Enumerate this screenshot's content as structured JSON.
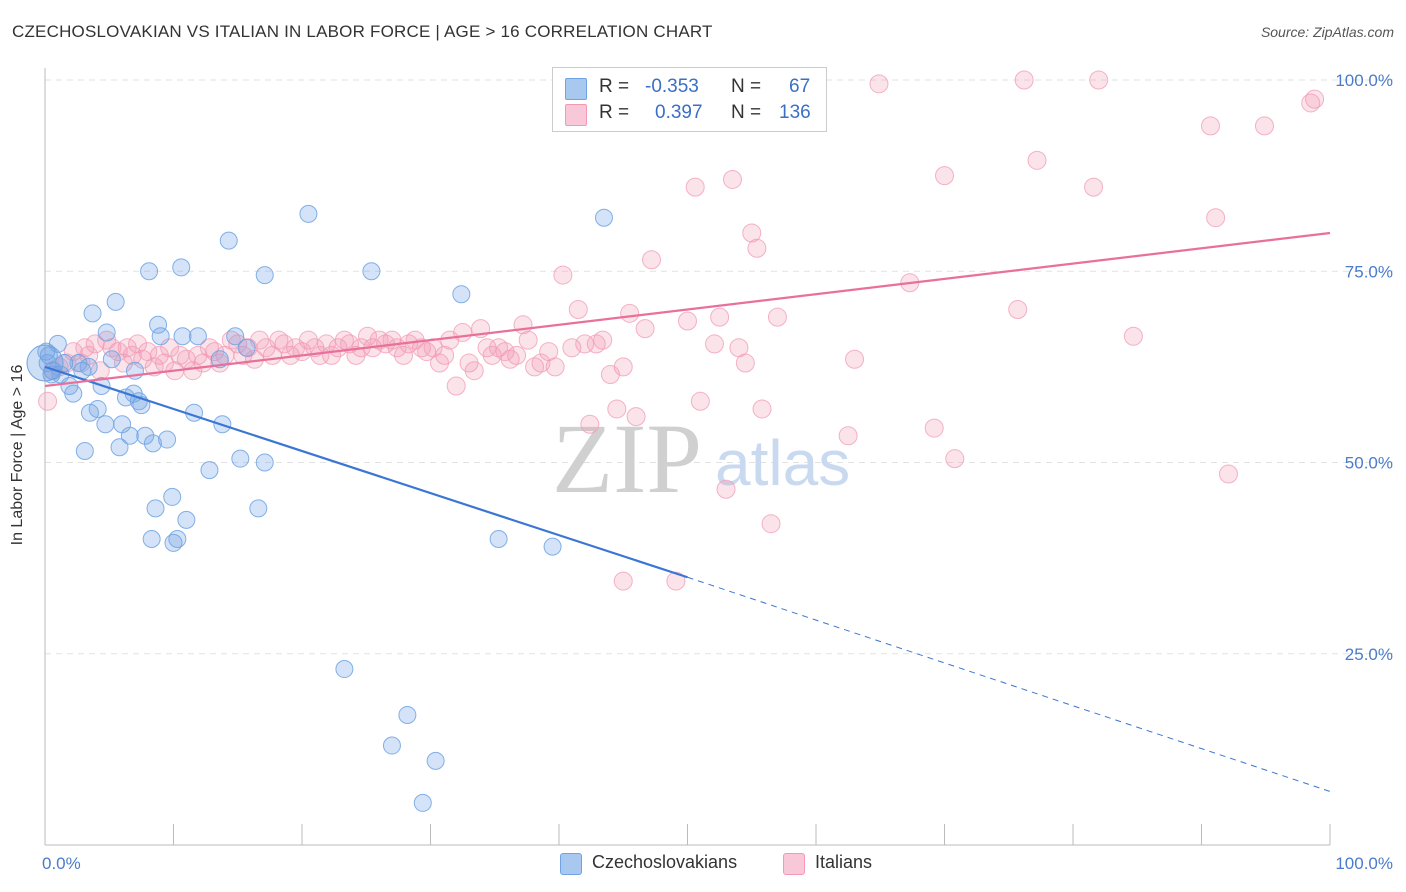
{
  "title": "CZECHOSLOVAKIAN VS ITALIAN IN LABOR FORCE | AGE > 16 CORRELATION CHART",
  "source": "Source: ZipAtlas.com",
  "watermark": {
    "zip": "ZIP",
    "atlas": "atlas"
  },
  "legend": {
    "r_label": "R =",
    "n_label": "N =",
    "rows": [
      {
        "r": "-0.353",
        "n": "67",
        "color": "#a8c8f0"
      },
      {
        "r": "0.397",
        "n": "136",
        "color": "#f8b8cc"
      }
    ]
  },
  "bottom_legend": [
    "Czechoslovakians",
    "Italians"
  ],
  "chart_data": {
    "type": "scatter",
    "ylabel": "In Labor Force | Age > 16",
    "xlim": [
      0,
      100
    ],
    "ylim": [
      0,
      105
    ],
    "x_tick_labels": [
      "0.0%",
      "100.0%"
    ],
    "y_ticks": [
      25,
      50,
      75,
      100
    ],
    "y_tick_labels": [
      "25.0%",
      "50.0%",
      "75.0%",
      "100.0%"
    ],
    "grid": true,
    "colors": {
      "czech": "#6fa3e3",
      "italian": "#f29ab5",
      "czech_line": "#3b76d4",
      "italian_line": "#e8709a"
    },
    "series": [
      {
        "name": "Czechoslovakians",
        "trend": {
          "x0": 0,
          "y0": 62.5,
          "x1": 50,
          "y1": 35,
          "dash_to_x": 100,
          "dash_to_y": 7
        },
        "points": [
          [
            0.1,
            64.5
          ],
          [
            0.2,
            63
          ],
          [
            0.6,
            62
          ],
          [
            1.2,
            61.5
          ],
          [
            1.5,
            63
          ],
          [
            1.9,
            60
          ],
          [
            2.2,
            59
          ],
          [
            2.9,
            62
          ],
          [
            3.1,
            51.5
          ],
          [
            3.4,
            62.5
          ],
          [
            3.5,
            56.5
          ],
          [
            3.7,
            69.5
          ],
          [
            4.1,
            57
          ],
          [
            4.4,
            60
          ],
          [
            4.7,
            55
          ],
          [
            4.8,
            67
          ],
          [
            5.2,
            63.5
          ],
          [
            5.5,
            71
          ],
          [
            5.8,
            52
          ],
          [
            6.0,
            55
          ],
          [
            6.3,
            58.5
          ],
          [
            6.6,
            53.5
          ],
          [
            6.9,
            59
          ],
          [
            7.0,
            62
          ],
          [
            7.3,
            58
          ],
          [
            7.5,
            57.5
          ],
          [
            7.8,
            53.5
          ],
          [
            8.1,
            75
          ],
          [
            8.3,
            40
          ],
          [
            8.4,
            52.5
          ],
          [
            8.6,
            44
          ],
          [
            8.8,
            68
          ],
          [
            9.0,
            66.5
          ],
          [
            9.5,
            53
          ],
          [
            9.9,
            45.5
          ],
          [
            10.0,
            39.5
          ],
          [
            10.3,
            40
          ],
          [
            10.6,
            75.5
          ],
          [
            10.7,
            66.5
          ],
          [
            11.0,
            42.5
          ],
          [
            11.6,
            56.5
          ],
          [
            11.9,
            66.5
          ],
          [
            12.8,
            49
          ],
          [
            13.6,
            63.5
          ],
          [
            13.8,
            55
          ],
          [
            14.3,
            79
          ],
          [
            14.8,
            66.5
          ],
          [
            15.2,
            50.5
          ],
          [
            15.7,
            65
          ],
          [
            16.6,
            44
          ],
          [
            17.1,
            74.5
          ],
          [
            17.1,
            50
          ],
          [
            20.5,
            82.5
          ],
          [
            23.3,
            23
          ],
          [
            25.4,
            75
          ],
          [
            27.0,
            13
          ],
          [
            28.2,
            17
          ],
          [
            29.4,
            5.5
          ],
          [
            30.4,
            11
          ],
          [
            32.4,
            72
          ],
          [
            35.3,
            40
          ],
          [
            39.5,
            39
          ],
          [
            43.5,
            82
          ],
          [
            0.3,
            64
          ],
          [
            1.0,
            65.5
          ],
          [
            2.6,
            63
          ],
          [
            0.5,
            61.5
          ]
        ]
      },
      {
        "name": "Italians",
        "trend": {
          "x0": 0,
          "y0": 60,
          "x1": 100,
          "y1": 80
        },
        "points": [
          [
            0.2,
            58
          ],
          [
            0.6,
            62
          ],
          [
            1.1,
            62.5
          ],
          [
            1.7,
            63
          ],
          [
            2.2,
            64.5
          ],
          [
            2.8,
            63
          ],
          [
            3.1,
            65
          ],
          [
            3.4,
            64
          ],
          [
            3.9,
            65.5
          ],
          [
            4.3,
            62
          ],
          [
            4.8,
            66
          ],
          [
            5.2,
            65
          ],
          [
            5.7,
            64.5
          ],
          [
            6.1,
            63
          ],
          [
            6.4,
            65
          ],
          [
            6.8,
            64
          ],
          [
            7.2,
            65.5
          ],
          [
            7.6,
            63.5
          ],
          [
            8.0,
            64.5
          ],
          [
            8.5,
            62.5
          ],
          [
            8.9,
            64
          ],
          [
            9.3,
            63
          ],
          [
            9.7,
            65
          ],
          [
            10.1,
            62
          ],
          [
            10.5,
            64
          ],
          [
            11.0,
            63.5
          ],
          [
            11.5,
            62
          ],
          [
            11.9,
            64
          ],
          [
            12.3,
            63
          ],
          [
            12.8,
            65
          ],
          [
            13.2,
            64.5
          ],
          [
            13.6,
            63
          ],
          [
            14.0,
            64
          ],
          [
            14.5,
            66
          ],
          [
            15.0,
            65.5
          ],
          [
            15.4,
            64
          ],
          [
            15.8,
            65
          ],
          [
            16.3,
            63.5
          ],
          [
            16.7,
            66
          ],
          [
            17.2,
            65
          ],
          [
            17.7,
            64
          ],
          [
            18.2,
            66
          ],
          [
            18.6,
            65.5
          ],
          [
            19.1,
            64
          ],
          [
            19.5,
            65
          ],
          [
            20.0,
            64.5
          ],
          [
            20.5,
            66
          ],
          [
            21.0,
            65
          ],
          [
            21.4,
            64
          ],
          [
            21.9,
            65.5
          ],
          [
            22.3,
            64
          ],
          [
            22.8,
            65
          ],
          [
            23.3,
            66
          ],
          [
            23.7,
            65.5
          ],
          [
            24.2,
            64
          ],
          [
            24.6,
            65
          ],
          [
            25.1,
            66.5
          ],
          [
            25.5,
            65
          ],
          [
            26.0,
            66
          ],
          [
            26.5,
            65.5
          ],
          [
            27.0,
            66
          ],
          [
            27.4,
            65
          ],
          [
            27.9,
            64
          ],
          [
            28.3,
            65.5
          ],
          [
            28.8,
            66
          ],
          [
            29.3,
            65
          ],
          [
            29.7,
            64.5
          ],
          [
            30.2,
            65
          ],
          [
            30.7,
            63
          ],
          [
            31.1,
            64
          ],
          [
            31.5,
            66
          ],
          [
            32.0,
            60
          ],
          [
            32.5,
            67
          ],
          [
            33.0,
            63
          ],
          [
            33.4,
            62
          ],
          [
            33.9,
            67.5
          ],
          [
            34.4,
            65
          ],
          [
            34.8,
            64
          ],
          [
            35.3,
            65
          ],
          [
            35.8,
            64.5
          ],
          [
            36.2,
            63.5
          ],
          [
            36.7,
            64
          ],
          [
            37.2,
            68
          ],
          [
            37.6,
            66
          ],
          [
            38.1,
            62.5
          ],
          [
            38.6,
            63
          ],
          [
            39.2,
            64.5
          ],
          [
            39.7,
            62.5
          ],
          [
            40.3,
            74.5
          ],
          [
            41.0,
            65
          ],
          [
            41.5,
            70
          ],
          [
            42.0,
            65.5
          ],
          [
            42.4,
            55
          ],
          [
            42.9,
            65.5
          ],
          [
            43.4,
            66
          ],
          [
            44.0,
            61.5
          ],
          [
            44.5,
            57
          ],
          [
            45.0,
            62.5
          ],
          [
            45.5,
            69.5
          ],
          [
            46.0,
            56
          ],
          [
            46.7,
            67.5
          ],
          [
            47.2,
            76.5
          ],
          [
            48.1,
            100
          ],
          [
            50.0,
            68.5
          ],
          [
            50.6,
            86
          ],
          [
            51.0,
            58
          ],
          [
            52.1,
            65.5
          ],
          [
            52.5,
            69
          ],
          [
            53.0,
            46.5
          ],
          [
            53.5,
            87
          ],
          [
            54.0,
            65
          ],
          [
            54.5,
            63
          ],
          [
            55.0,
            80
          ],
          [
            55.4,
            78
          ],
          [
            55.8,
            57
          ],
          [
            56.5,
            42
          ],
          [
            57.0,
            69
          ],
          [
            59.2,
            100
          ],
          [
            62.5,
            53.5
          ],
          [
            63.0,
            63.5
          ],
          [
            64.9,
            99.5
          ],
          [
            67.3,
            73.5
          ],
          [
            69.2,
            54.5
          ],
          [
            70.0,
            87.5
          ],
          [
            70.8,
            50.5
          ],
          [
            75.7,
            70
          ],
          [
            76.2,
            100
          ],
          [
            77.2,
            89.5
          ],
          [
            81.6,
            86
          ],
          [
            82.0,
            100
          ],
          [
            84.7,
            66.5
          ],
          [
            90.7,
            94
          ],
          [
            91.1,
            82
          ],
          [
            92.1,
            48.5
          ],
          [
            94.9,
            94
          ],
          [
            98.5,
            97
          ],
          [
            98.8,
            97.5
          ],
          [
            45.0,
            34.5
          ],
          [
            49.1,
            34.5
          ],
          [
            59.2,
            100
          ]
        ]
      }
    ]
  }
}
